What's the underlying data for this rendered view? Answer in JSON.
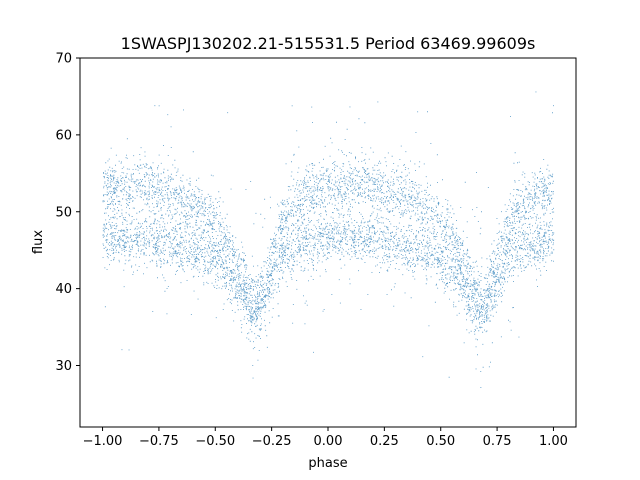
{
  "chart_data": {
    "type": "scatter",
    "title": "1SWASPJ130202.21-515531.5 Period 63469.99609s",
    "xlabel": "phase",
    "ylabel": "flux",
    "xlim": [
      -1.1,
      1.1
    ],
    "ylim": [
      22,
      70
    ],
    "xticks": [
      -1.0,
      -0.75,
      -0.5,
      -0.25,
      0.0,
      0.25,
      0.5,
      0.75,
      1.0
    ],
    "xtick_labels": [
      "−1.00",
      "−0.75",
      "−0.50",
      "−0.25",
      "0.00",
      "0.25",
      "0.50",
      "0.75",
      "1.00"
    ],
    "yticks": [
      30,
      40,
      50,
      60,
      70
    ],
    "ytick_labels": [
      "30",
      "40",
      "50",
      "60",
      "70"
    ],
    "grid": false,
    "marker_color": "#1f77b4",
    "series": [
      {
        "description_points": "phase-folded light curve, dense band of points",
        "x": [
          -1.0,
          -0.9,
          -0.8,
          -0.7,
          -0.6,
          -0.5,
          -0.45,
          -0.4,
          -0.35,
          -0.32,
          -0.3,
          -0.25,
          -0.2,
          -0.1,
          0.0,
          0.1,
          0.2,
          0.3,
          0.4,
          0.5,
          0.55,
          0.6,
          0.65,
          0.68,
          0.7,
          0.75,
          0.8,
          0.9,
          1.0
        ],
        "y_upper": [
          53,
          53.5,
          53.5,
          52.5,
          51,
          48.5,
          46,
          43,
          40,
          38.5,
          39,
          44,
          49,
          52,
          53,
          53.5,
          53.5,
          52.5,
          51,
          48.5,
          46,
          43,
          40,
          38.5,
          39,
          44,
          49,
          52,
          53
        ],
        "y_lower": [
          46.5,
          46.5,
          46.5,
          46,
          45,
          43.5,
          42,
          40,
          37.5,
          36.5,
          37,
          41,
          44.5,
          46,
          46.5,
          46.5,
          46.5,
          46,
          45,
          43.5,
          42,
          40,
          37.5,
          36.5,
          37,
          41,
          44.5,
          46,
          46.5
        ]
      }
    ]
  }
}
